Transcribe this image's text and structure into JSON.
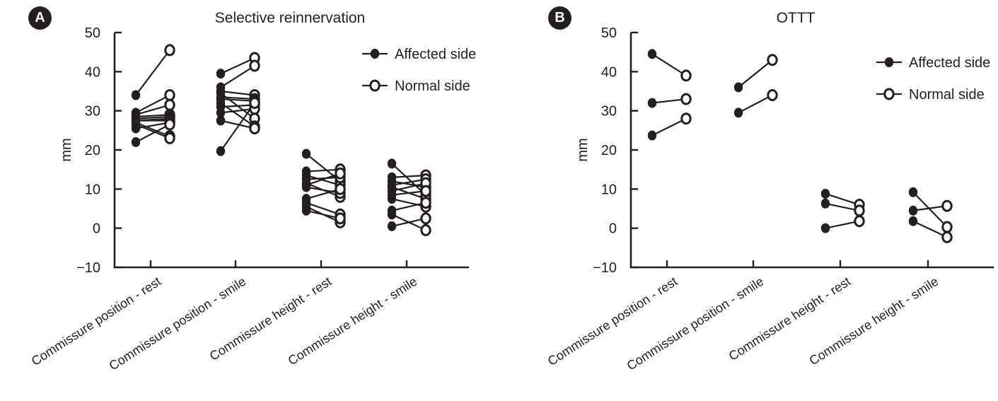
{
  "colors": {
    "ink": "#231f20",
    "background": "#ffffff"
  },
  "chart_data": [
    {
      "type": "paired-scatter",
      "panel_label": "A",
      "title": "Selective reinnervation",
      "ylabel": "mm",
      "ylim": [
        -10,
        50
      ],
      "ytick_values": [
        50,
        40,
        30,
        20,
        10,
        0,
        -10
      ],
      "ytick_labels": [
        "50",
        "40",
        "30",
        "20",
        "10",
        "0",
        "−10"
      ],
      "grid": false,
      "legend": {
        "position": "upper right",
        "entries": [
          {
            "label": "Affected side",
            "marker": "filled-circle"
          },
          {
            "label": "Normal side",
            "marker": "open-circle"
          }
        ]
      },
      "categories": [
        "Commissure position - rest",
        "Commissure position - smile",
        "Commissure height - rest",
        "Commissure height - smile"
      ],
      "clusters": [
        {
          "category": "Commissure position - rest",
          "pairs_affected_normal_mm": [
            [
              34,
              45.5
            ],
            [
              29.5,
              34
            ],
            [
              29,
              31.5
            ],
            [
              28.5,
              29
            ],
            [
              28,
              28.5
            ],
            [
              27.5,
              28
            ],
            [
              27.5,
              27.5
            ],
            [
              27,
              23.5
            ],
            [
              26.5,
              23
            ],
            [
              25.5,
              27
            ],
            [
              22,
              26.5
            ]
          ]
        },
        {
          "category": "Commissure position - smile",
          "pairs_affected_normal_mm": [
            [
              39.5,
              43.5
            ],
            [
              36,
              41.5
            ],
            [
              35,
              34
            ],
            [
              34.5,
              28
            ],
            [
              33.5,
              33
            ],
            [
              33,
              32.5
            ],
            [
              32,
              26
            ],
            [
              31,
              31.5
            ],
            [
              29.5,
              30.5
            ],
            [
              27.5,
              25.5
            ],
            [
              19.7,
              32
            ]
          ]
        },
        {
          "category": "Commissure height - rest",
          "pairs_affected_normal_mm": [
            [
              19,
              12
            ],
            [
              14.5,
              15
            ],
            [
              13.5,
              11
            ],
            [
              12.5,
              13
            ],
            [
              11.5,
              8
            ],
            [
              11,
              14
            ],
            [
              10.5,
              9
            ],
            [
              7.5,
              10
            ],
            [
              6.5,
              3.5
            ],
            [
              5.5,
              1.5
            ],
            [
              4.5,
              2.5
            ]
          ]
        },
        {
          "category": "Commissure height - smile",
          "pairs_affected_normal_mm": [
            [
              16.5,
              8.5
            ],
            [
              13,
              13.5
            ],
            [
              12,
              10.5
            ],
            [
              11,
              12.5
            ],
            [
              10.5,
              7.5
            ],
            [
              9.5,
              11.5
            ],
            [
              8.5,
              9.5
            ],
            [
              7.5,
              5.5
            ],
            [
              4.5,
              6.5
            ],
            [
              3.5,
              -0.5
            ],
            [
              0.5,
              2.5
            ]
          ]
        }
      ]
    },
    {
      "type": "paired-scatter",
      "panel_label": "B",
      "title": "OTTT",
      "ylabel": "mm",
      "ylim": [
        -10,
        50
      ],
      "ytick_values": [
        50,
        40,
        30,
        20,
        10,
        0,
        -10
      ],
      "ytick_labels": [
        "50",
        "40",
        "30",
        "20",
        "10",
        "0",
        "−10"
      ],
      "grid": false,
      "legend": {
        "position": "upper right",
        "entries": [
          {
            "label": "Affected side",
            "marker": "filled-circle"
          },
          {
            "label": "Normal side",
            "marker": "open-circle"
          }
        ]
      },
      "categories": [
        "Commissure position - rest",
        "Commissure position - smile",
        "Commissure height - rest",
        "Commissure height - smile"
      ],
      "clusters": [
        {
          "category": "Commissure position - rest",
          "pairs_affected_normal_mm": [
            [
              44.5,
              39
            ],
            [
              32,
              33
            ],
            [
              23.7,
              28
            ]
          ]
        },
        {
          "category": "Commissure position - smile",
          "pairs_affected_normal_mm": [
            [
              36,
              43
            ],
            [
              29.5,
              34
            ]
          ]
        },
        {
          "category": "Commissure height - rest",
          "pairs_affected_normal_mm": [
            [
              8.8,
              6
            ],
            [
              6.3,
              4.5
            ],
            [
              0,
              1.8
            ]
          ]
        },
        {
          "category": "Commissure height - smile",
          "pairs_affected_normal_mm": [
            [
              9.2,
              0.3
            ],
            [
              4.5,
              5.7
            ],
            [
              1.8,
              -2.3
            ]
          ]
        }
      ]
    }
  ]
}
